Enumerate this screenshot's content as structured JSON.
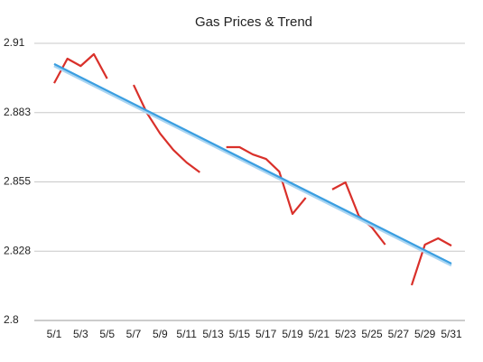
{
  "chart_data": {
    "type": "line",
    "title": "Gas Prices & Trend",
    "categories": [
      "5/1",
      null,
      "5/3",
      null,
      "5/5",
      null,
      "5/7",
      null,
      "5/9",
      null,
      "5/11",
      null,
      "5/13",
      null,
      "5/15",
      null,
      "5/17",
      null,
      "5/19",
      null,
      "5/21",
      null,
      "5/23",
      null,
      "5/25",
      null,
      "5/27",
      null,
      "5/29",
      null,
      "5/31"
    ],
    "series": [
      {
        "color": "#d9302a",
        "values": [
          2.8942,
          2.9039,
          2.901,
          2.9057,
          2.896,
          null,
          2.8935,
          2.8824,
          2.8742,
          2.8677,
          2.8627,
          2.8588,
          null,
          2.8688,
          2.8688,
          2.8659,
          2.8641,
          2.8591,
          2.8423,
          2.8487,
          null,
          2.852,
          2.8548,
          2.8416,
          2.8369,
          2.8301,
          null,
          2.814,
          2.8301,
          2.8326,
          2.8297
        ]
      }
    ],
    "trend": {
      "color": "#3a9ee0",
      "values": [
        2.9018,
        2.8226
      ]
    },
    "ylim": [
      2.8,
      2.91
    ],
    "yticks": [
      2.8,
      {
        "value": 2.8275,
        "label": "2.828"
      },
      2.855,
      {
        "value": 2.8825,
        "label": "2.883"
      },
      2.91
    ],
    "grid": true
  }
}
